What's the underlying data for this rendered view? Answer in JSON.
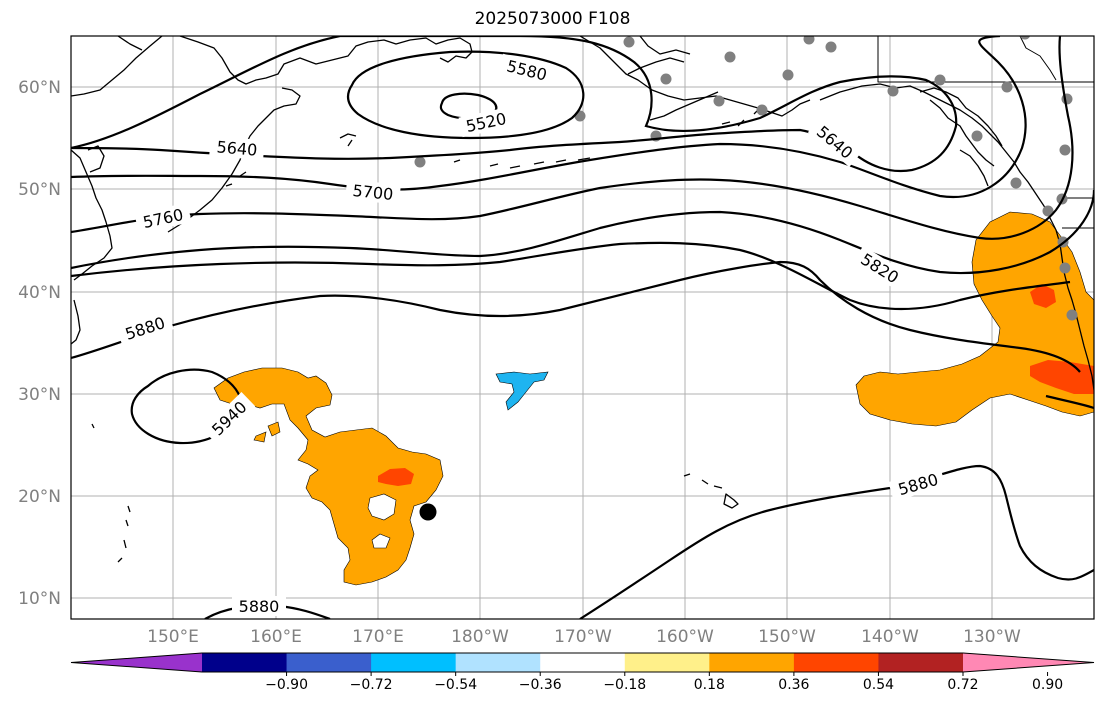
{
  "title": "2025073000 F108",
  "lat_labels": [
    "60°N",
    "50°N",
    "40°N",
    "30°N",
    "20°N",
    "10°N"
  ],
  "lon_labels": [
    "150°E",
    "160°E",
    "170°E",
    "180°W",
    "170°W",
    "160°W",
    "150°W",
    "140°W",
    "130°W"
  ],
  "contour_labels": [
    "5520",
    "5580",
    "5640",
    "5640",
    "5700",
    "5760",
    "5820",
    "5880",
    "5880",
    "5880",
    "5940"
  ],
  "colorbar": {
    "colors": [
      "#9932cc",
      "#00008b",
      "#3a5fcd",
      "#00bfff",
      "#b0e2ff",
      "#ffffff",
      "#fff08a",
      "#ffa500",
      "#ff4500",
      "#b22222",
      "#ff88b4"
    ],
    "tick_labels": [
      "−0.90",
      "−0.72",
      "−0.54",
      "−0.36",
      "−0.18",
      "0.18",
      "0.36",
      "0.54",
      "0.72",
      "0.90"
    ]
  },
  "palette": {
    "orange": "#ffa500",
    "red_orange": "#ff4500",
    "cyan": "#1eb4f0",
    "station_gray": "#808080",
    "marker_black": "#000000",
    "grid": "#b0b0b0"
  }
}
